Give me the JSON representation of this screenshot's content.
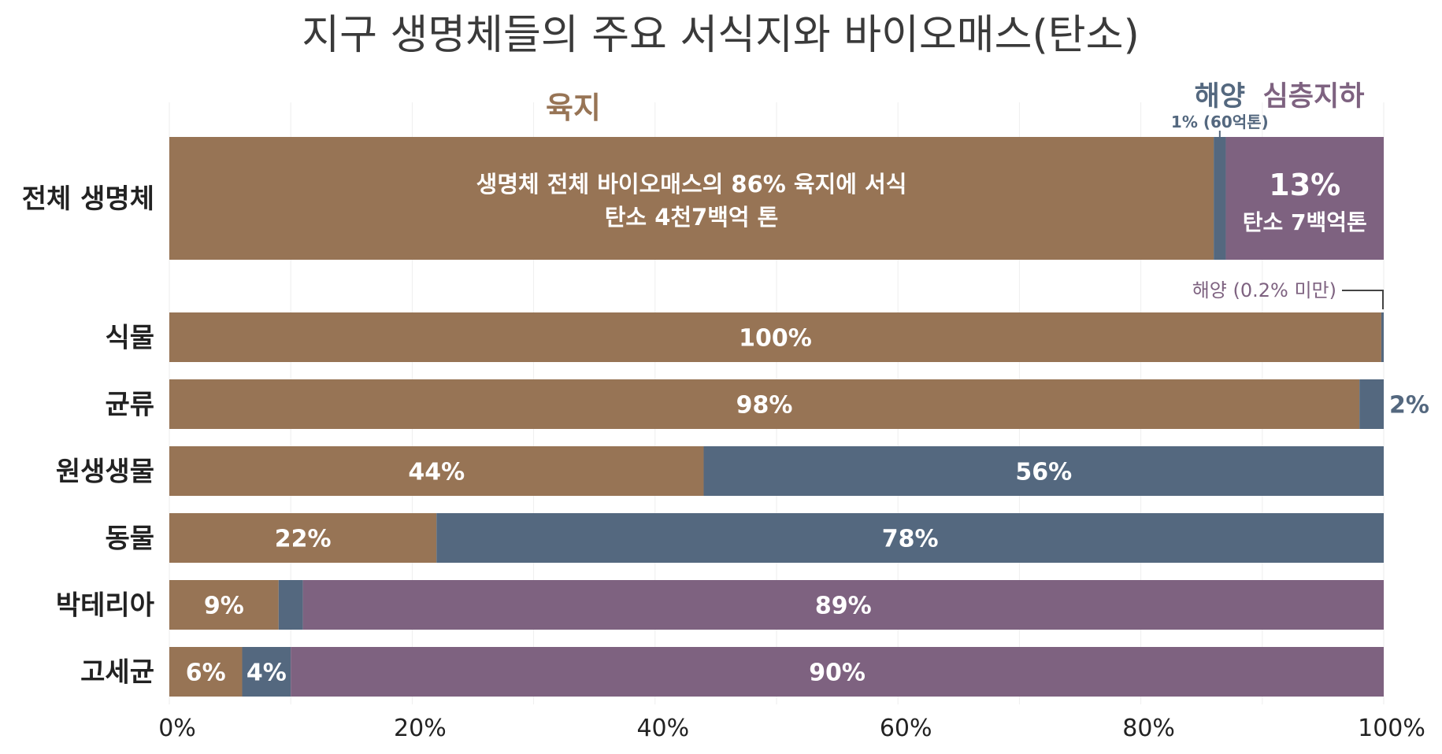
{
  "chart_data": {
    "type": "bar",
    "orientation": "horizontal",
    "stacked": true,
    "title": "지구 생명체들의 주요 서식지와 바이오매스(탄소)",
    "xlim": [
      0,
      100
    ],
    "x_ticks": [
      "0%",
      "20%",
      "40%",
      "60%",
      "80%",
      "100%"
    ],
    "grid": "vertical, light",
    "categories": [
      "전체 생명체",
      "식물",
      "균류",
      "원생생물",
      "동물",
      "박테리아",
      "고세균"
    ],
    "series": [
      {
        "name": "육지",
        "values": [
          86,
          99.8,
          98,
          44,
          22,
          9,
          6
        ]
      },
      {
        "name": "해양",
        "values": [
          1,
          0.2,
          2,
          56,
          78,
          2,
          4
        ]
      },
      {
        "name": "심층지하",
        "values": [
          13,
          0,
          0,
          0,
          0,
          89,
          90
        ]
      }
    ],
    "value_labels": [
      [
        "생명체 전체 바이오매스의 86% 육지에 서식\n탄소 4천7백억 톤",
        "",
        "13%\n탄소 7백억톤"
      ],
      [
        "100%",
        "",
        ""
      ],
      [
        "98%",
        "",
        ""
      ],
      [
        "44%",
        "56%",
        ""
      ],
      [
        "22%",
        "78%",
        ""
      ],
      [
        "9%",
        "",
        "89%"
      ],
      [
        "6%",
        "4%",
        "90%"
      ]
    ],
    "headers": {
      "land": "육지",
      "ocean": "해양",
      "ocean_sub": "1% (60억톤)",
      "deep": "심층지하"
    },
    "annotations": {
      "plant_ocean": "해양 (0.2% 미만)",
      "fungi_ocean": "2%"
    }
  },
  "colors": {
    "land": "#977455",
    "ocean": "#54687f",
    "deep": "#7e6280",
    "annotation": "#7e6280",
    "text": "#222222"
  }
}
